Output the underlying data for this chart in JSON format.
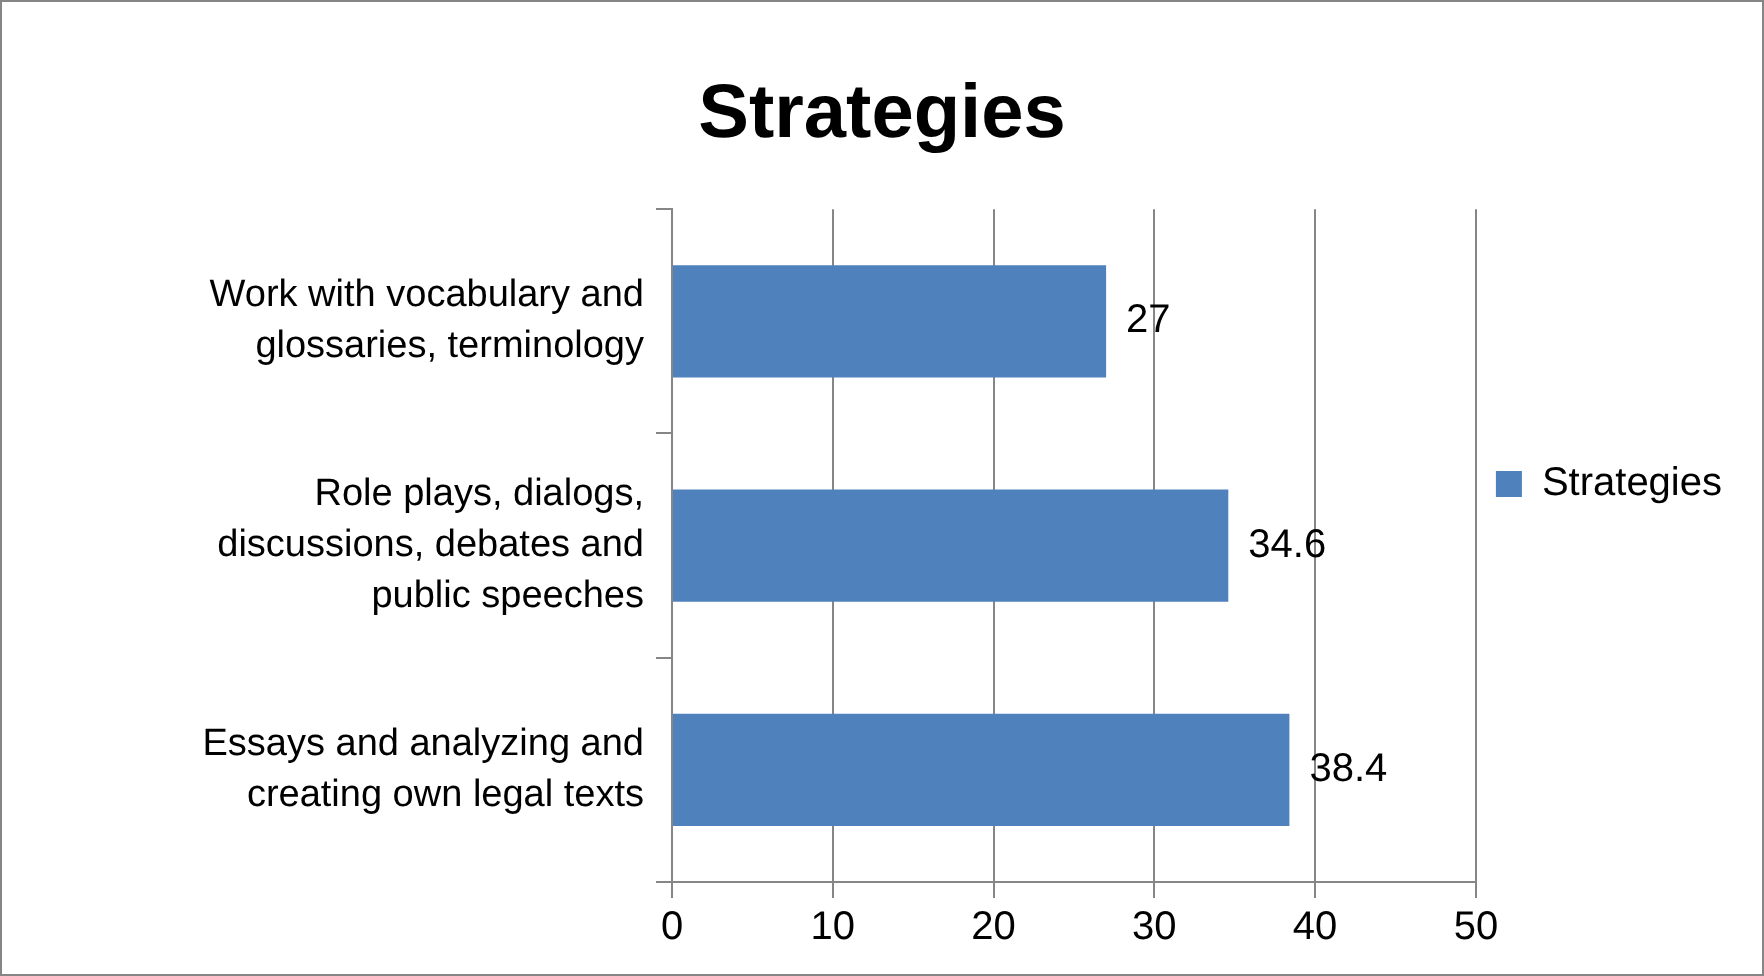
{
  "chart_data": {
    "type": "bar",
    "orientation": "horizontal",
    "title": "Strategies",
    "categories": [
      "Work with vocabulary and glossaries, terminology",
      "Role plays, dialogs, discussions, debates and public speeches",
      "Essays and analyzing and creating own legal texts"
    ],
    "series": [
      {
        "name": "Strategies",
        "color": "#4f81bd",
        "values": [
          27,
          34.6,
          38.4
        ]
      }
    ],
    "xlim": [
      0,
      50
    ],
    "xticks": [
      0,
      10,
      20,
      30,
      40,
      50
    ],
    "grid": "x",
    "legend": "right",
    "data_labels": true
  }
}
